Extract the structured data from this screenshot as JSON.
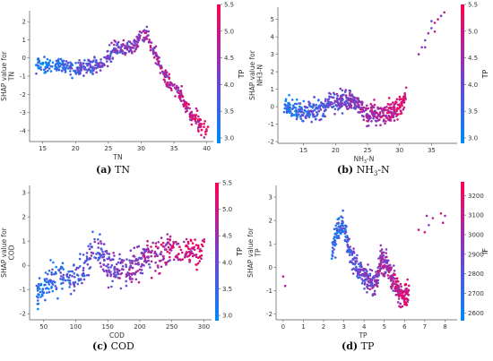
{
  "chart_data": [
    {
      "type": "scatter",
      "panel": "a",
      "caption_letter": "(a)",
      "caption_text": "TN",
      "xlabel": "TN",
      "ylabel": "SHAP value for\nTN",
      "xlim": [
        13,
        41
      ],
      "ylim": [
        -4.6,
        2.6
      ],
      "xticks": [
        15,
        20,
        25,
        30,
        35,
        40
      ],
      "yticks": [
        -4,
        -3,
        -2,
        -1,
        0,
        1,
        2
      ],
      "color_label": "TP",
      "color_range": [
        2.9,
        5.5
      ],
      "color_ticks": [
        3.0,
        3.5,
        4.0,
        4.5,
        5.0,
        5.5
      ],
      "trend": [
        [
          14,
          -0.4
        ],
        [
          16,
          -0.5
        ],
        [
          18,
          -0.4
        ],
        [
          20,
          -0.6
        ],
        [
          22,
          -0.5
        ],
        [
          24,
          -0.3
        ],
        [
          25,
          0.0
        ],
        [
          26,
          0.4
        ],
        [
          27,
          0.5
        ],
        [
          28,
          0.6
        ],
        [
          29,
          0.7
        ],
        [
          30,
          1.2
        ],
        [
          31,
          1.3
        ],
        [
          32,
          0.3
        ],
        [
          33,
          -0.5
        ],
        [
          34,
          -1.3
        ],
        [
          35,
          -1.5
        ],
        [
          36,
          -2.0
        ],
        [
          37,
          -2.8
        ],
        [
          38,
          -3.2
        ],
        [
          39,
          -3.6
        ],
        [
          40,
          -4.0
        ]
      ],
      "spread": 0.45,
      "n_points": 560
    },
    {
      "type": "scatter",
      "panel": "b",
      "caption_letter": "(b)",
      "caption_text": "NH3-N",
      "xlabel": "NH3-N",
      "ylabel": "SHAP value for\nNH3-N",
      "xlim": [
        11,
        39
      ],
      "ylim": [
        -2.1,
        5.7
      ],
      "xticks": [
        15,
        20,
        25,
        30,
        35
      ],
      "yticks": [
        -2,
        -1,
        0,
        1,
        2,
        3,
        4,
        5
      ],
      "color_label": "TP",
      "color_range": [
        2.9,
        5.5
      ],
      "color_ticks": [
        3.0,
        3.5,
        4.0,
        4.5,
        5.0,
        5.5
      ],
      "trend": [
        [
          12,
          0.0
        ],
        [
          14,
          -0.2
        ],
        [
          16,
          -0.3
        ],
        [
          18,
          -0.1
        ],
        [
          20,
          0.3
        ],
        [
          22,
          0.4
        ],
        [
          23,
          0.3
        ],
        [
          24,
          0.0
        ],
        [
          25,
          -0.5
        ],
        [
          26,
          -0.3
        ],
        [
          27,
          -0.5
        ],
        [
          28,
          -0.3
        ],
        [
          29,
          -0.2
        ],
        [
          30,
          0.0
        ],
        [
          31,
          0.4
        ]
      ],
      "spread": 0.55,
      "n_points": 560,
      "extra_points": [
        [
          33,
          3.0
        ],
        [
          33.5,
          3.4
        ],
        [
          34,
          3.8
        ],
        [
          34.5,
          4.2
        ],
        [
          35,
          4.5
        ],
        [
          35,
          4.9
        ],
        [
          35.5,
          4.3
        ],
        [
          36,
          5.0
        ],
        [
          36.5,
          5.2
        ],
        [
          37,
          5.4
        ],
        [
          34,
          3.4
        ],
        [
          35.5,
          4.8
        ]
      ]
    },
    {
      "type": "scatter",
      "panel": "c",
      "caption_letter": "(c)",
      "caption_text": "COD",
      "xlabel": "COD",
      "ylabel": "SHAP value for\nCOD",
      "xlim": [
        28,
        312
      ],
      "ylim": [
        -2.25,
        3.3
      ],
      "xticks": [
        50,
        100,
        150,
        200,
        250,
        300
      ],
      "yticks": [
        -2,
        -1,
        0,
        1,
        2,
        3
      ],
      "color_label": "TP",
      "color_range": [
        2.9,
        5.5
      ],
      "color_ticks": [
        3.0,
        3.5,
        4.0,
        4.5,
        5.0,
        5.5
      ],
      "trend": [
        [
          40,
          -1.2
        ],
        [
          60,
          -0.5
        ],
        [
          80,
          -0.4
        ],
        [
          90,
          -0.6
        ],
        [
          100,
          -0.5
        ],
        [
          110,
          -0.3
        ],
        [
          120,
          0.3
        ],
        [
          130,
          0.8
        ],
        [
          140,
          0.4
        ],
        [
          150,
          0.0
        ],
        [
          160,
          -0.2
        ],
        [
          175,
          -0.3
        ],
        [
          190,
          0.0
        ],
        [
          210,
          0.3
        ],
        [
          230,
          0.4
        ],
        [
          250,
          0.6
        ],
        [
          270,
          0.6
        ],
        [
          290,
          0.5
        ],
        [
          300,
          0.6
        ]
      ],
      "spread": 0.65,
      "n_points": 520
    },
    {
      "type": "scatter",
      "panel": "d",
      "caption_letter": "(d)",
      "caption_text": "TP",
      "xlabel": "TP",
      "ylabel": "SHAP value for\nTP",
      "xlim": [
        -0.35,
        8.6
      ],
      "ylim": [
        -2.25,
        3.5
      ],
      "xticks": [
        0,
        1,
        2,
        3,
        4,
        5,
        6,
        7,
        8
      ],
      "yticks": [
        -2,
        -1,
        0,
        1,
        2,
        3
      ],
      "color_label": "IF",
      "color_range": [
        2560,
        3270
      ],
      "color_ticks": [
        2600,
        2700,
        2800,
        2900,
        3000,
        3100,
        3200
      ],
      "trend": [
        [
          2.4,
          0.7
        ],
        [
          2.6,
          1.2
        ],
        [
          2.8,
          1.6
        ],
        [
          3.0,
          1.8
        ],
        [
          3.2,
          1.0
        ],
        [
          3.4,
          0.4
        ],
        [
          3.6,
          0.0
        ],
        [
          3.8,
          -0.2
        ],
        [
          4.0,
          -0.5
        ],
        [
          4.2,
          -0.4
        ],
        [
          4.4,
          -0.8
        ],
        [
          4.6,
          -0.7
        ],
        [
          4.8,
          0.3
        ],
        [
          5.0,
          0.2
        ],
        [
          5.2,
          0.0
        ],
        [
          5.4,
          -0.5
        ],
        [
          5.6,
          -0.8
        ],
        [
          5.8,
          -1.2
        ],
        [
          6.0,
          -1.3
        ],
        [
          6.2,
          -1.1
        ]
      ],
      "spread": 0.55,
      "n_points": 500,
      "extra_points": [
        [
          0.0,
          -0.4
        ],
        [
          0.1,
          -0.8
        ],
        [
          7.0,
          1.5
        ],
        [
          7.1,
          2.2
        ],
        [
          7.2,
          1.8
        ],
        [
          7.4,
          2.1
        ],
        [
          7.8,
          2.3
        ],
        [
          7.9,
          1.9
        ],
        [
          8.0,
          2.2
        ],
        [
          6.7,
          1.6
        ]
      ]
    }
  ]
}
